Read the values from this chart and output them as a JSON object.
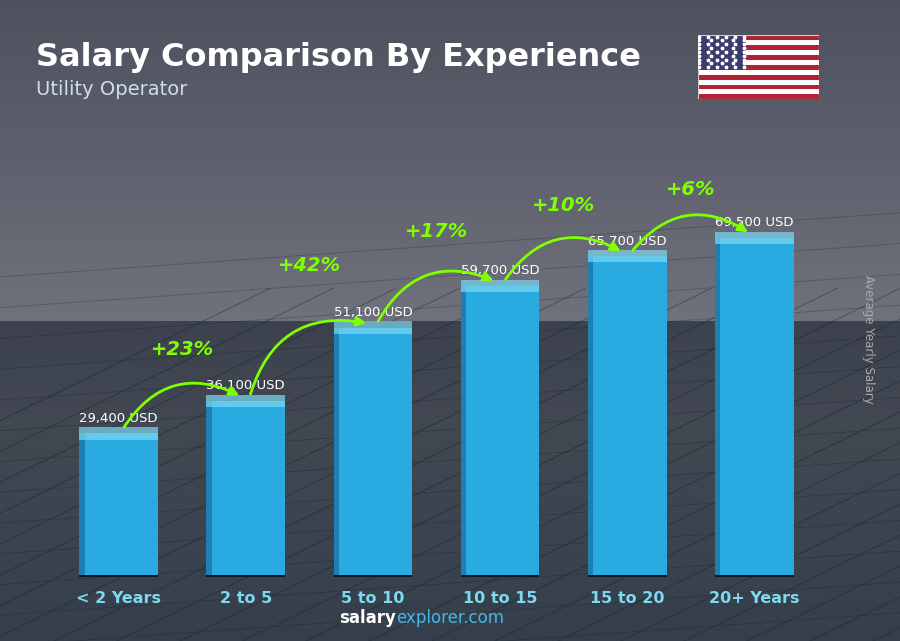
{
  "title": "Salary Comparison By Experience",
  "subtitle": "Utility Operator",
  "ylabel": "Average Yearly Salary",
  "categories": [
    "< 2 Years",
    "2 to 5",
    "5 to 10",
    "10 to 15",
    "15 to 20",
    "20+ Years"
  ],
  "values": [
    29400,
    36100,
    51100,
    59700,
    65700,
    69500
  ],
  "value_labels": [
    "29,400 USD",
    "36,100 USD",
    "51,100 USD",
    "59,700 USD",
    "65,700 USD",
    "69,500 USD"
  ],
  "pct_labels": [
    "+23%",
    "+42%",
    "+17%",
    "+10%",
    "+6%"
  ],
  "bar_color": "#29abe2",
  "bar_dark": "#1a7aaa",
  "bar_top": "#7dd8f0",
  "pct_color": "#7fff00",
  "title_color": "#ffffff",
  "subtitle_color": "#e0e8f0",
  "val_color": "#ffffff",
  "bg_top": "#5a7080",
  "bg_bottom": "#1a2830",
  "figsize": [
    9.0,
    6.41
  ],
  "dpi": 100,
  "flag_stripes": [
    "#B22234",
    "#ffffff",
    "#B22234",
    "#ffffff",
    "#B22234",
    "#ffffff",
    "#B22234",
    "#ffffff",
    "#B22234",
    "#ffffff",
    "#B22234",
    "#ffffff",
    "#B22234"
  ],
  "flag_canton": "#3C3B6E"
}
